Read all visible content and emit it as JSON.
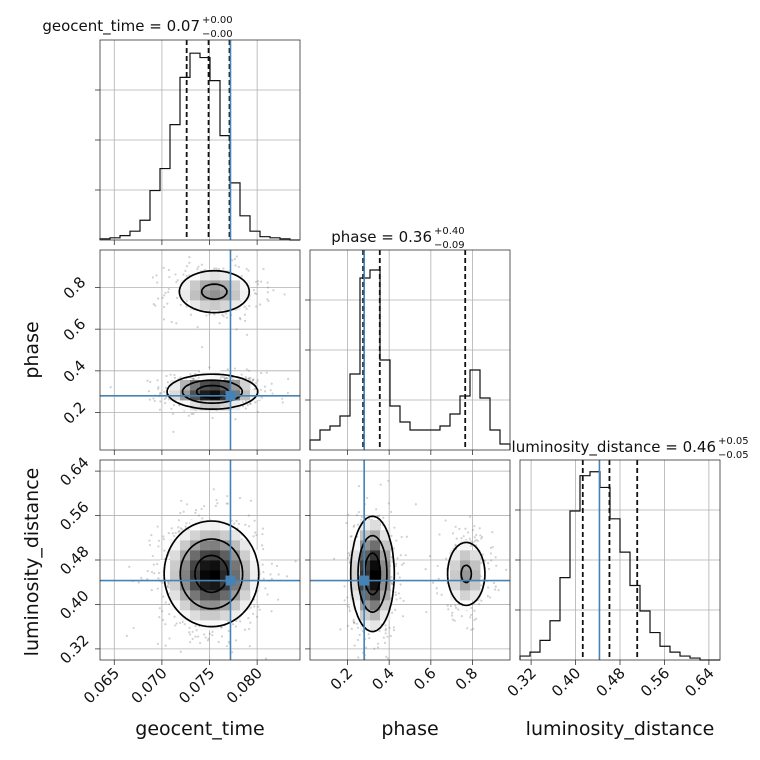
{
  "figure": {
    "width": 760,
    "height": 760
  },
  "chart_data": {
    "type": "corner",
    "parameters": [
      {
        "name": "geocent_time",
        "xlabel": "geocent_time",
        "title_text": "geocent_time = 0.07",
        "title_sup": "+0.00",
        "title_sub": "−0.00",
        "range": [
          0.0635,
          0.0845
        ],
        "ticks": [
          0.065,
          0.07,
          0.075,
          0.08
        ],
        "tick_labels": [
          "0.065",
          "0.070",
          "0.075",
          "0.080"
        ],
        "truth": 0.0772,
        "quantiles": [
          0.0726,
          0.0749,
          0.0771
        ],
        "hist": {
          "edges_start": 0.0635,
          "bin_width": 0.00105,
          "counts": [
            1,
            2,
            4,
            8,
            18,
            45,
            65,
            105,
            148,
            170,
            166,
            145,
            95,
            52,
            22,
            8,
            3,
            2,
            1,
            0
          ],
          "max": 182
        }
      },
      {
        "name": "phase",
        "ylabel": "phase",
        "xlabel": "phase",
        "title_text": "phase = 0.36",
        "title_sup": "+0.40",
        "title_sub": "−0.09",
        "range": [
          0.02,
          0.98
        ],
        "ticks": [
          0.2,
          0.4,
          0.6,
          0.8
        ],
        "tick_labels": [
          "0.2",
          "0.4",
          "0.6",
          "0.8"
        ],
        "truth": 0.28,
        "quantiles": [
          0.275,
          0.355,
          0.765
        ],
        "hist": {
          "edges_start": 0.02,
          "bin_width": 0.048,
          "counts": [
            0.05,
            0.1,
            0.12,
            0.17,
            0.38,
            0.86,
            0.9,
            0.45,
            0.22,
            0.14,
            0.1,
            0.1,
            0.1,
            0.12,
            0.18,
            0.27,
            0.4,
            0.26,
            0.1,
            0.03
          ],
          "max": 1.0
        }
      },
      {
        "name": "luminosity_distance",
        "ylabel": "luminosity_distance",
        "xlabel": "luminosity_distance",
        "title_text": "luminosity_distance = 0.46",
        "title_sup": "+0.05",
        "title_sub": "−0.05",
        "range": [
          0.3,
          0.66
        ],
        "ticks": [
          0.32,
          0.4,
          0.48,
          0.56,
          0.64
        ],
        "tick_labels": [
          "0.32",
          "0.40",
          "0.48",
          "0.56",
          "0.64"
        ],
        "truth": 0.443,
        "quantiles": [
          0.413,
          0.461,
          0.511
        ],
        "hist": {
          "edges_start": 0.3,
          "bin_width": 0.018,
          "counts": [
            0.02,
            0.04,
            0.1,
            0.2,
            0.42,
            0.76,
            0.94,
            0.96,
            0.88,
            0.72,
            0.55,
            0.38,
            0.25,
            0.14,
            0.07,
            0.04,
            0.02,
            0.01,
            0.0,
            0.0
          ],
          "max": 1.02
        }
      }
    ],
    "pairs": [
      {
        "x": "geocent_time",
        "y": "phase",
        "modes": [
          {
            "cx": 0.0753,
            "cy": 0.3,
            "sx": 0.0023,
            "sy": 0.04,
            "w": 0.68
          },
          {
            "cx": 0.0755,
            "cy": 0.78,
            "sx": 0.0022,
            "sy": 0.06,
            "w": 0.32
          }
        ]
      },
      {
        "x": "geocent_time",
        "y": "luminosity_distance",
        "modes": [
          {
            "cx": 0.0752,
            "cy": 0.455,
            "sx": 0.0024,
            "sy": 0.046,
            "w": 1.0
          }
        ]
      },
      {
        "x": "phase",
        "y": "luminosity_distance",
        "modes": [
          {
            "cx": 0.32,
            "cy": 0.455,
            "sx": 0.05,
            "sy": 0.05,
            "w": 0.7
          },
          {
            "cx": 0.77,
            "cy": 0.455,
            "sx": 0.055,
            "sy": 0.035,
            "w": 0.3
          }
        ]
      }
    ]
  }
}
